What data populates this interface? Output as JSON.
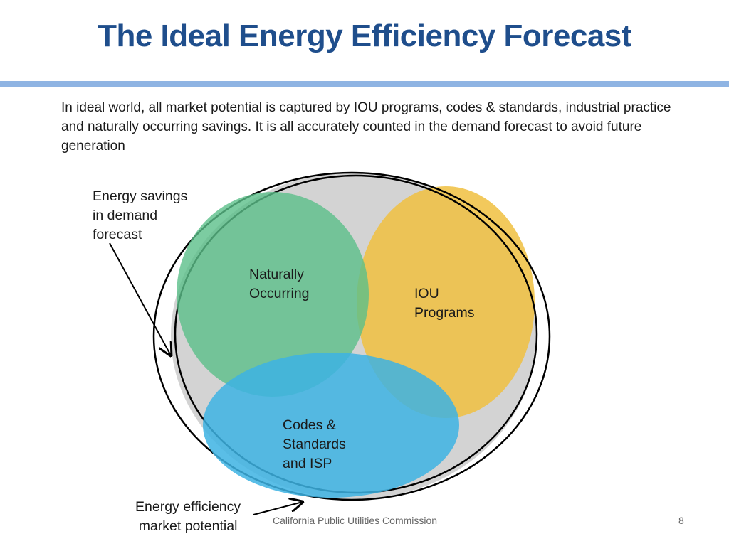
{
  "slide": {
    "title": "The Ideal Energy Efficiency Forecast",
    "intro": "In ideal world, all market potential is captured by IOU programs, codes & standards, industrial practice and naturally occurring savings. It is all accurately counted in the demand forecast to avoid future generation"
  },
  "diagram": {
    "callouts": {
      "demand_forecast": "Energy savings\nin demand\nforecast",
      "market_potential": "Energy efficiency\nmarket potential"
    },
    "regions": {
      "naturally_occurring": "Naturally\nOccurring",
      "iou_programs": "IOU\nPrograms",
      "codes_standards": "Codes &\nStandards\nand ISP"
    },
    "colors": {
      "market_potential_fill": "#d3d3d3",
      "naturally_occurring": "#5bbf8a",
      "iou_programs": "#f0c040",
      "codes_standards": "#3db3e3",
      "outline": "#000000"
    }
  },
  "footer": {
    "organization": "California Public Utilities Commission",
    "page_number": "8"
  }
}
